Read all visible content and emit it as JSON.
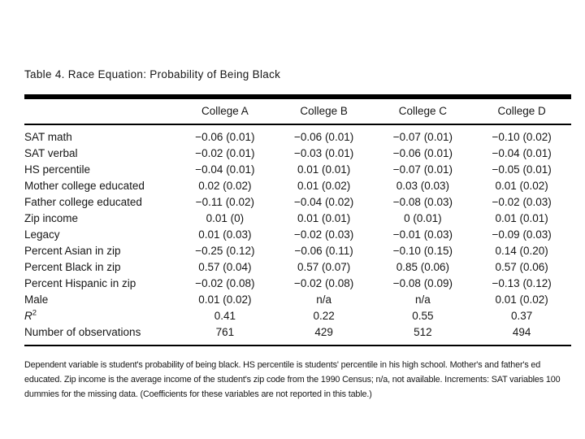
{
  "page": {
    "background": "#ffffff",
    "text_color": "#161616",
    "rule_color": "#000000"
  },
  "table": {
    "title": "Table 4. Race Equation: Probability of Being Black",
    "columns": [
      "College A",
      "College B",
      "College C",
      "College D"
    ],
    "rows": [
      {
        "label": "SAT math",
        "values": [
          "−0.06 (0.01)",
          "−0.06 (0.01)",
          "−0.07 (0.01)",
          "−0.10 (0.02)"
        ]
      },
      {
        "label": "SAT verbal",
        "values": [
          "−0.02 (0.01)",
          "−0.03 (0.01)",
          "−0.06 (0.01)",
          "−0.04 (0.01)"
        ]
      },
      {
        "label": "HS percentile",
        "values": [
          "−0.04 (0.01)",
          "0.01 (0.01)",
          "−0.07 (0.01)",
          "−0.05 (0.01)"
        ]
      },
      {
        "label": "Mother college educated",
        "values": [
          "0.02 (0.02)",
          "0.01 (0.02)",
          "0.03 (0.03)",
          "0.01 (0.02)"
        ]
      },
      {
        "label": "Father college educated",
        "values": [
          "−0.11 (0.02)",
          "−0.04 (0.02)",
          "−0.08 (0.03)",
          "−0.02 (0.03)"
        ]
      },
      {
        "label": "Zip income",
        "values": [
          "0.01 (0)",
          "0.01 (0.01)",
          "0 (0.01)",
          "0.01 (0.01)"
        ]
      },
      {
        "label": "Legacy",
        "values": [
          "0.01 (0.03)",
          "−0.02 (0.03)",
          "−0.01 (0.03)",
          "−0.09 (0.03)"
        ]
      },
      {
        "label": "Percent Asian in zip",
        "values": [
          "−0.25 (0.12)",
          "−0.06 (0.11)",
          "−0.10 (0.15)",
          "0.14 (0.20)"
        ]
      },
      {
        "label": "Percent Black in zip",
        "values": [
          "0.57 (0.04)",
          "0.57 (0.07)",
          "0.85 (0.06)",
          "0.57 (0.06)"
        ]
      },
      {
        "label": "Percent Hispanic in zip",
        "values": [
          "−0.02 (0.08)",
          "−0.02 (0.08)",
          "−0.08 (0.09)",
          "−0.13 (0.12)"
        ]
      },
      {
        "label": "Male",
        "values": [
          "0.01 (0.02)",
          "n/a",
          "n/a",
          "0.01 (0.02)"
        ]
      },
      {
        "label": "R",
        "label_sup": "2",
        "label_italic": true,
        "values": [
          "0.41",
          "0.22",
          "0.55",
          "0.37"
        ]
      },
      {
        "label": "Number of observations",
        "values": [
          "761",
          "429",
          "512",
          "494"
        ]
      }
    ]
  },
  "footnote": {
    "lines": [
      "Dependent variable is student's probability of being black. HS percentile is students' percentile in his high school. Mother's and father's ed",
      "educated. Zip income is the average income of the student's zip code from the 1990 Census; n/a, not available. Increments: SAT variables 100",
      "dummies for the missing data. (Coefficients for these variables are not reported in this table.)"
    ]
  }
}
